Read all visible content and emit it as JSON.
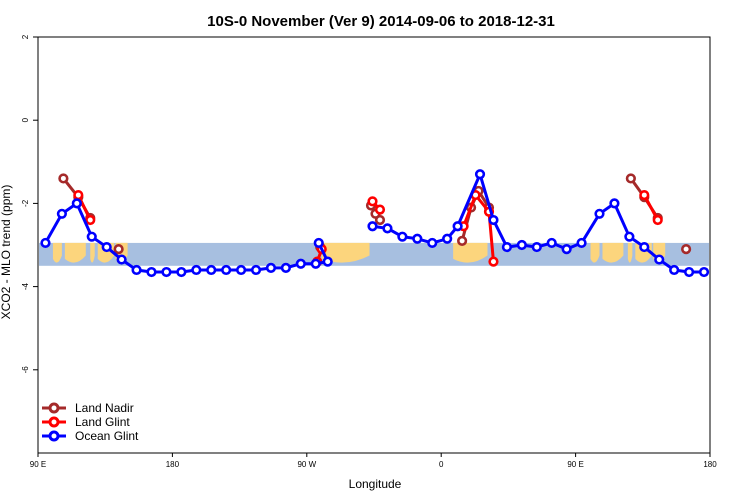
{
  "chart_data": {
    "type": "line",
    "title": "10S-0 November (Ver 9)   2014-09-06 to 2018-12-31",
    "xlabel": "Longitude",
    "ylabel": "XCO2 - MLO trend (ppm)",
    "xlim": [
      90,
      540
    ],
    "ylim": [
      -8,
      2
    ],
    "x_ticks": [
      {
        "value": 90,
        "label": "90 E"
      },
      {
        "value": 180,
        "label": "180"
      },
      {
        "value": 270,
        "label": "90 W"
      },
      {
        "value": 360,
        "label": "0"
      },
      {
        "value": 450,
        "label": "90 E"
      },
      {
        "value": 540,
        "label": "180"
      }
    ],
    "y_ticks": [
      {
        "value": 2,
        "label": "2"
      },
      {
        "value": 0,
        "label": "0"
      },
      {
        "value": -2,
        "label": "-2"
      },
      {
        "value": -4,
        "label": "-4"
      },
      {
        "value": -6,
        "label": "-6"
      }
    ],
    "map_strip": {
      "y_top": -2.95,
      "y_bottom": -3.5,
      "ocean_color": "#a7bfe0",
      "land_color": "#fcd57d"
    },
    "legend_position": "bottom-left",
    "series": [
      {
        "name": "Land Nadir",
        "color": "#a52a2a",
        "segments": [
          [
            [
              107,
              -1.4
            ],
            [
              117,
              -1.85
            ],
            [
              125,
              -2.35
            ]
          ],
          [
            [
              144,
              -3.1
            ]
          ],
          [
            [
              279,
              -3.05
            ]
          ],
          [
            [
              313,
              -2.05
            ],
            [
              316,
              -2.25
            ],
            [
              319,
              -2.4
            ]
          ],
          [
            [
              374,
              -2.9
            ],
            [
              380,
              -2.1
            ],
            [
              385,
              -1.7
            ],
            [
              392,
              -2.1
            ]
          ],
          [
            [
              487,
              -1.4
            ],
            [
              496,
              -1.85
            ],
            [
              505,
              -2.35
            ]
          ],
          [
            [
              524,
              -3.1
            ]
          ]
        ]
      },
      {
        "name": "Land Glint",
        "color": "#ff0000",
        "segments": [
          [
            [
              117,
              -1.8
            ],
            [
              125,
              -2.4
            ]
          ],
          [
            [
              277,
              -3.4
            ],
            [
              280,
              -3.1
            ]
          ],
          [
            [
              314,
              -1.95
            ],
            [
              319,
              -2.15
            ]
          ],
          [
            [
              375,
              -2.55
            ],
            [
              383,
              -1.8
            ],
            [
              392,
              -2.2
            ],
            [
              395,
              -3.4
            ]
          ],
          [
            [
              496,
              -1.8
            ],
            [
              505,
              -2.4
            ]
          ]
        ]
      },
      {
        "name": "Ocean Glint",
        "color": "#0000ff",
        "segments": [
          [
            [
              95,
              -2.95
            ],
            [
              106,
              -2.25
            ],
            [
              116,
              -2.0
            ],
            [
              126,
              -2.8
            ],
            [
              136,
              -3.05
            ],
            [
              146,
              -3.35
            ],
            [
              156,
              -3.6
            ],
            [
              166,
              -3.65
            ],
            [
              176,
              -3.65
            ],
            [
              186,
              -3.65
            ],
            [
              196,
              -3.6
            ],
            [
              206,
              -3.6
            ],
            [
              216,
              -3.6
            ],
            [
              226,
              -3.6
            ],
            [
              236,
              -3.6
            ],
            [
              246,
              -3.55
            ],
            [
              256,
              -3.55
            ],
            [
              266,
              -3.45
            ],
            [
              276,
              -3.45
            ],
            [
              284,
              -3.4
            ],
            [
              278,
              -2.95
            ]
          ],
          [
            [
              314,
              -2.55
            ],
            [
              324,
              -2.6
            ],
            [
              334,
              -2.8
            ],
            [
              344,
              -2.85
            ],
            [
              354,
              -2.95
            ],
            [
              364,
              -2.85
            ],
            [
              371,
              -2.55
            ],
            [
              386,
              -1.3
            ],
            [
              395,
              -2.4
            ],
            [
              404,
              -3.05
            ],
            [
              414,
              -3.0
            ],
            [
              424,
              -3.05
            ],
            [
              434,
              -2.95
            ],
            [
              444,
              -3.1
            ],
            [
              454,
              -2.95
            ],
            [
              466,
              -2.25
            ],
            [
              476,
              -2.0
            ],
            [
              486,
              -2.8
            ],
            [
              496,
              -3.05
            ],
            [
              506,
              -3.35
            ],
            [
              516,
              -3.6
            ],
            [
              526,
              -3.65
            ],
            [
              536,
              -3.65
            ]
          ]
        ]
      }
    ]
  }
}
